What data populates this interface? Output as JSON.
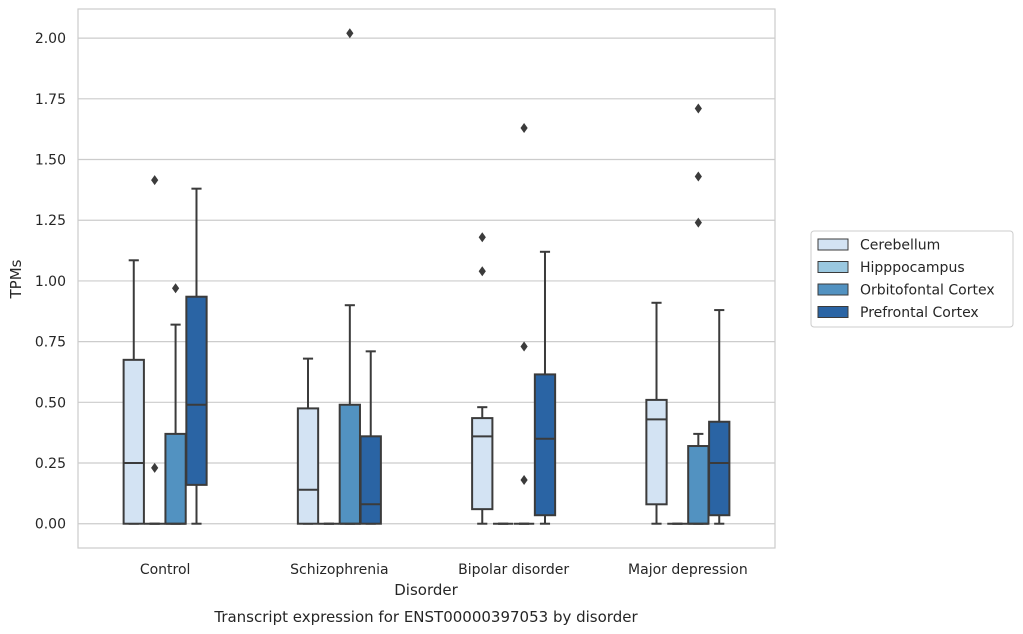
{
  "chart_data": {
    "type": "box",
    "caption": "Transcript expression for ENST00000397053 by disorder",
    "xlabel": "Disorder",
    "ylabel": "TPMs",
    "ylim": [
      -0.1,
      2.12
    ],
    "yticks": [
      "0.00",
      "0.25",
      "0.50",
      "0.75",
      "1.00",
      "1.25",
      "1.50",
      "1.75",
      "2.00"
    ],
    "grid": true,
    "legend_position": "right",
    "categories": [
      "Control",
      "Schizophrenia",
      "Bipolar disorder",
      "Major depression"
    ],
    "series": [
      {
        "name": "Cerebellum",
        "color": "#d3e3f3",
        "boxes": [
          {
            "whislo": 0.0,
            "q1": 0.0,
            "med": 0.25,
            "q3": 0.675,
            "whishi": 1.085,
            "fliers": []
          },
          {
            "whislo": 0.0,
            "q1": 0.0,
            "med": 0.14,
            "q3": 0.475,
            "whishi": 0.68,
            "fliers": []
          },
          {
            "whislo": 0.0,
            "q1": 0.06,
            "med": 0.36,
            "q3": 0.435,
            "whishi": 0.48,
            "fliers": [
              1.04,
              1.18
            ]
          },
          {
            "whislo": 0.0,
            "q1": 0.08,
            "med": 0.43,
            "q3": 0.51,
            "whishi": 0.91,
            "fliers": []
          }
        ]
      },
      {
        "name": "Hipppocampus",
        "color": "#9ac8e0",
        "boxes": [
          {
            "whislo": 0.0,
            "q1": 0.0,
            "med": 0.0,
            "q3": 0.0,
            "whishi": 0.0,
            "fliers": [
              0.23,
              1.415
            ]
          },
          {
            "whislo": 0.0,
            "q1": 0.0,
            "med": 0.0,
            "q3": 0.0,
            "whishi": 0.0,
            "fliers": []
          },
          {
            "whislo": 0.0,
            "q1": 0.0,
            "med": 0.0,
            "q3": 0.0,
            "whishi": 0.0,
            "fliers": []
          },
          {
            "whislo": 0.0,
            "q1": 0.0,
            "med": 0.0,
            "q3": 0.0,
            "whishi": 0.0,
            "fliers": []
          }
        ]
      },
      {
        "name": "Orbitofontal Cortex",
        "color": "#5292c1",
        "boxes": [
          {
            "whislo": 0.0,
            "q1": 0.0,
            "med": 0.0,
            "q3": 0.37,
            "whishi": 0.82,
            "fliers": [
              0.97
            ]
          },
          {
            "whislo": 0.0,
            "q1": 0.0,
            "med": 0.0,
            "q3": 0.49,
            "whishi": 0.9,
            "fliers": [
              2.02
            ]
          },
          {
            "whislo": 0.0,
            "q1": 0.0,
            "med": 0.0,
            "q3": 0.0,
            "whishi": 0.0,
            "fliers": [
              0.18,
              0.73,
              1.63
            ]
          },
          {
            "whislo": 0.0,
            "q1": 0.0,
            "med": 0.0,
            "q3": 0.32,
            "whishi": 0.37,
            "fliers": [
              1.24,
              1.43,
              1.71
            ]
          }
        ]
      },
      {
        "name": "Prefrontal Cortex",
        "color": "#2a64a4",
        "boxes": [
          {
            "whislo": 0.0,
            "q1": 0.16,
            "med": 0.49,
            "q3": 0.935,
            "whishi": 1.38,
            "fliers": []
          },
          {
            "whislo": 0.0,
            "q1": 0.0,
            "med": 0.08,
            "q3": 0.36,
            "whishi": 0.71,
            "fliers": []
          },
          {
            "whislo": 0.0,
            "q1": 0.035,
            "med": 0.35,
            "q3": 0.615,
            "whishi": 1.12,
            "fliers": []
          },
          {
            "whislo": 0.0,
            "q1": 0.035,
            "med": 0.25,
            "q3": 0.42,
            "whishi": 0.88,
            "fliers": []
          }
        ]
      }
    ]
  }
}
